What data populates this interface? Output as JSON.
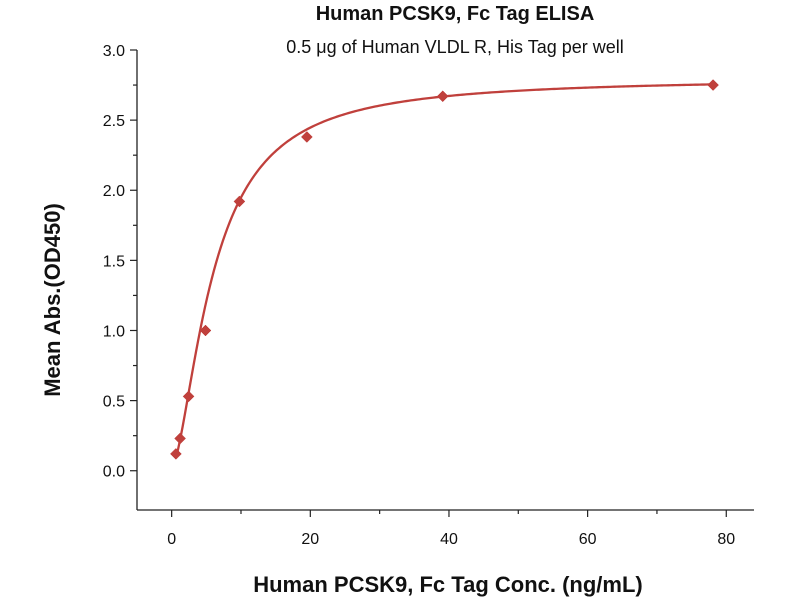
{
  "chart_data": {
    "type": "scatter",
    "title": "Human PCSK9, Fc Tag ELISA",
    "subtitle": "0.5 μg of Human VLDL R, His Tag per well",
    "xlabel": "Human PCSK9, Fc Tag Conc. (ng/mL)",
    "ylabel": "Mean Abs.(OD450)",
    "xlim": [
      -5,
      84
    ],
    "ylim": [
      -0.28,
      3.0
    ],
    "xticks": [
      0,
      20,
      40,
      60,
      80
    ],
    "yticks": [
      0.0,
      0.5,
      1.0,
      1.5,
      2.0,
      2.5,
      3.0
    ],
    "xtick_labels": [
      "0",
      "20",
      "40",
      "60",
      "80"
    ],
    "ytick_labels": [
      "0.0",
      "0.5",
      "1.0",
      "1.5",
      "2.0",
      "2.5",
      "3.0"
    ],
    "grid": false,
    "series": [
      {
        "marker": "diamond",
        "color": "#c0403c",
        "x": [
          0.61,
          1.22,
          2.44,
          4.88,
          9.77,
          19.5,
          39.1,
          78.1
        ],
        "y": [
          0.12,
          0.23,
          0.53,
          1.0,
          1.92,
          2.38,
          2.67,
          2.75
        ]
      }
    ],
    "fit": {
      "type": "4PL",
      "color": "#c0403c",
      "bottom": 0.02,
      "top": 2.8,
      "ec50": 6.0,
      "hill": 1.6
    }
  }
}
